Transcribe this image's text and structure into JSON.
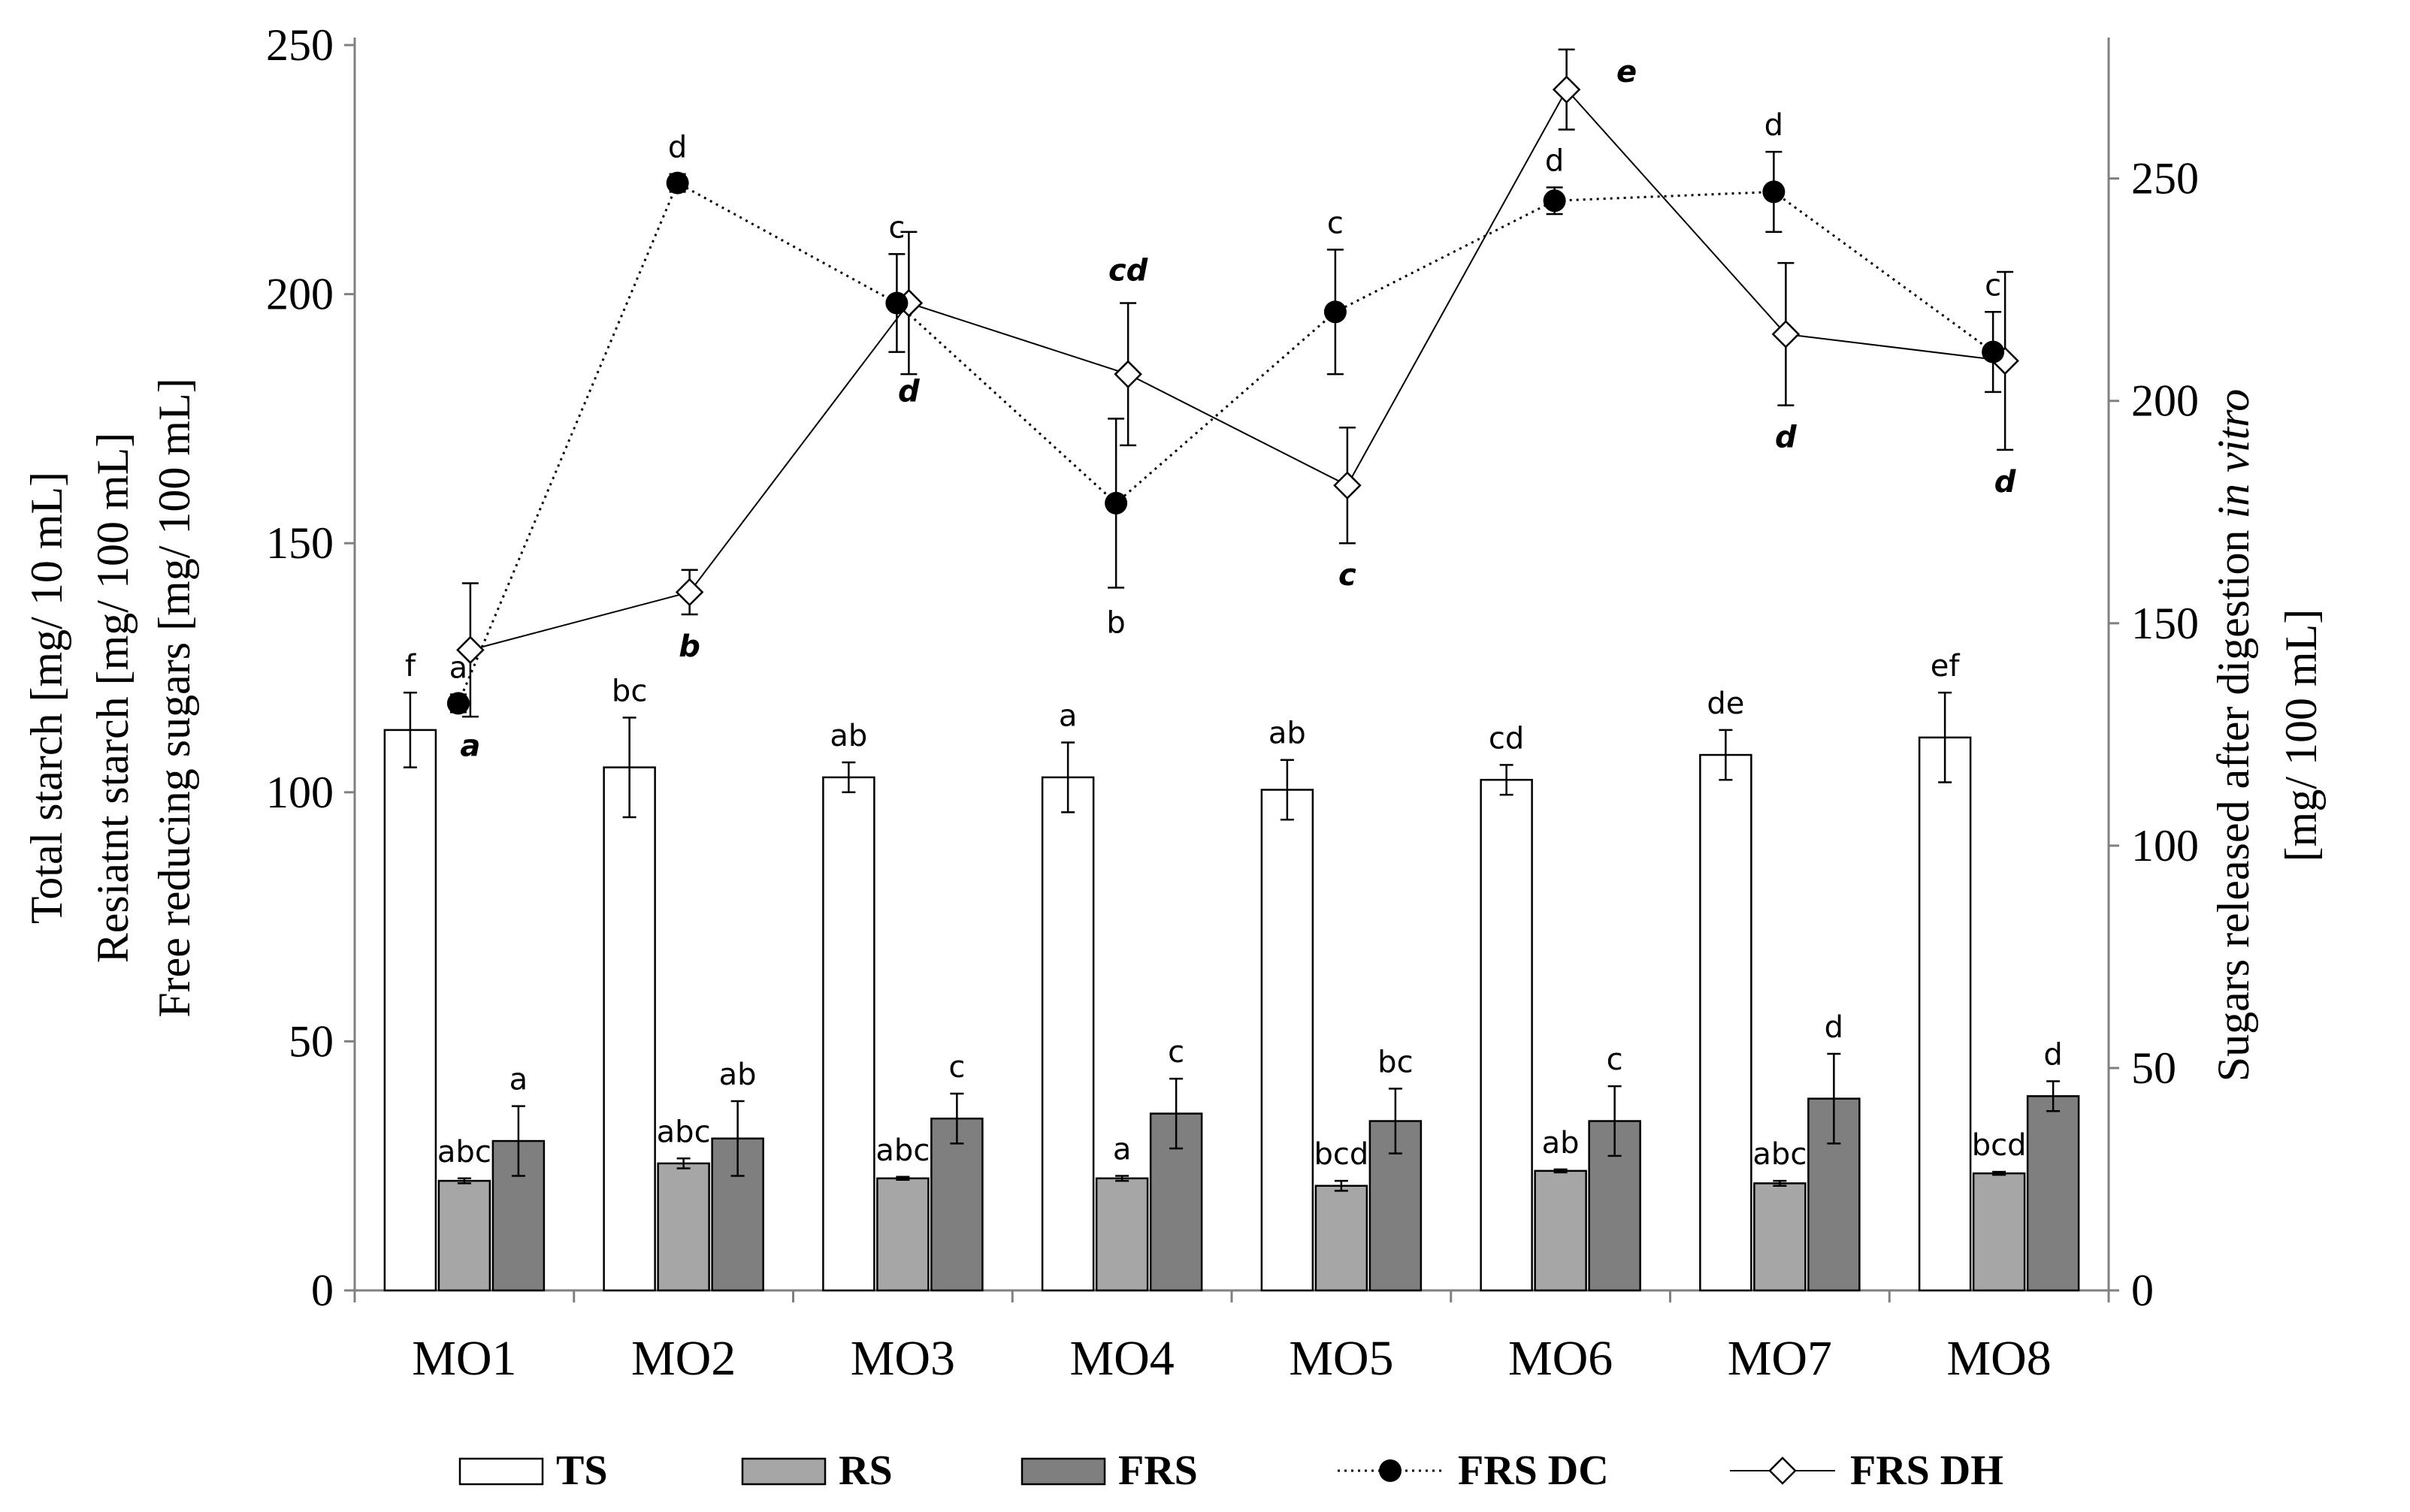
{
  "chart_data": {
    "type": "bar",
    "categories": [
      "MO1",
      "MO2",
      "MO3",
      "MO4",
      "MO5",
      "MO6",
      "MO7",
      "MO8"
    ],
    "left_axis": {
      "labels": [
        "Total starch [mg/ 10 mL]",
        "Resiatnt starch [mg/ 100 mL]",
        "Free reducing sugars [mg/ 100 mL]"
      ],
      "ylim": [
        0,
        250
      ],
      "ticks": [
        0,
        50,
        100,
        150,
        200,
        250
      ]
    },
    "right_axis": {
      "label_parts": [
        "Sugars released after digestion ",
        "in vitro"
      ],
      "label_line2": "[mg/ 100 mL]",
      "ylim": [
        0,
        280
      ],
      "ticks": [
        0,
        50,
        100,
        150,
        200,
        250
      ]
    },
    "bar_series": [
      {
        "name": "TS",
        "color": "#ffffff",
        "values": [
          112.5,
          105,
          103,
          103,
          100.5,
          102.5,
          107.5,
          111
        ],
        "errors": [
          7.5,
          10,
          3,
          7,
          6,
          3,
          5,
          9
        ],
        "labels": [
          "f",
          "bc",
          "ab",
          "a",
          "ab",
          "cd",
          "de",
          "ef"
        ]
      },
      {
        "name": "RS",
        "color": "#a6a6a6",
        "values": [
          22,
          25.5,
          22.5,
          22.5,
          21,
          24,
          21.5,
          23.5
        ],
        "errors": [
          0.5,
          1,
          0.3,
          0.5,
          1,
          0.3,
          0.5,
          0.3
        ],
        "labels": [
          "abc",
          "abc",
          "abc",
          "a",
          "bcd",
          "ab",
          "abc",
          "bcd"
        ]
      },
      {
        "name": "FRS",
        "color": "#7f7f7f",
        "values": [
          30,
          30.5,
          34.5,
          35.5,
          34,
          34,
          38.5,
          39
        ],
        "errors": [
          7,
          7.5,
          5,
          7,
          6.5,
          7,
          9,
          3
        ],
        "labels": [
          "a",
          "ab",
          "c",
          "c",
          "bc",
          "c",
          "d",
          "d"
        ]
      }
    ],
    "line_series": [
      {
        "name": "FRS DC",
        "axis": "right",
        "values": [
          132,
          249,
          222,
          177,
          220,
          245,
          247,
          211
        ],
        "errors": [
          2,
          2,
          11,
          19,
          14,
          3,
          9,
          9
        ],
        "labels": [
          "a",
          "d",
          "c",
          "b",
          "c",
          "d",
          "d",
          "c"
        ]
      },
      {
        "name": "FRS DH",
        "axis": "right",
        "values": [
          144,
          157,
          222,
          206,
          181,
          270,
          215,
          209
        ],
        "errors": [
          15,
          5,
          16,
          16,
          13,
          9,
          16,
          20
        ],
        "labels": [
          "a",
          "b",
          "d",
          "cd",
          "c",
          "e",
          "d",
          "d"
        ]
      }
    ],
    "legend": [
      "TS",
      "RS",
      "FRS",
      "FRS DC",
      "FRS DH"
    ]
  }
}
